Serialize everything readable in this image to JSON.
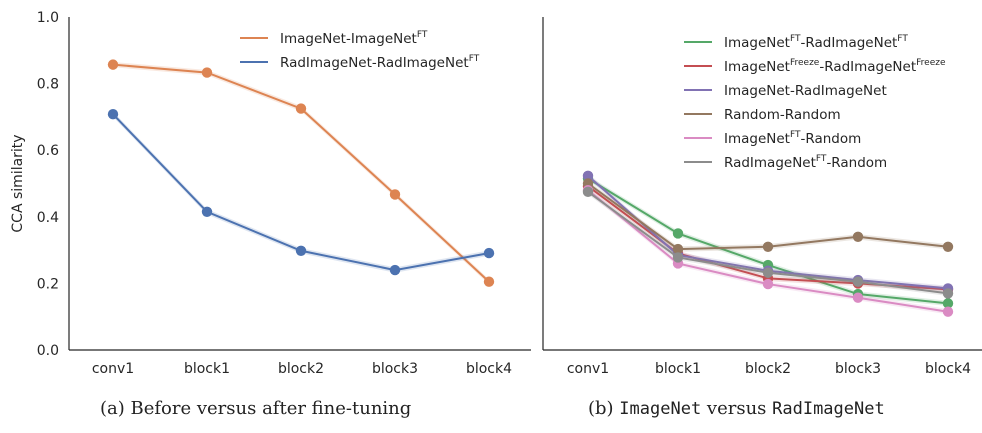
{
  "chart_data": [
    {
      "type": "line",
      "categories": [
        "conv1",
        "block1",
        "block2",
        "block3",
        "block4"
      ],
      "ylabel": "CCA similarity",
      "ylim": [
        0.0,
        1.0
      ],
      "yticks": [
        "0.0",
        "0.2",
        "0.4",
        "0.6",
        "0.8",
        "1.0"
      ],
      "legend_position": "top-right",
      "caption": {
        "prefix": "(a) ",
        "text": "Before versus after fine-tuning"
      },
      "series": [
        {
          "name": "ImageNet-ImageNet^FT",
          "legend": [
            {
              "t": "ImageNet-ImageNet"
            },
            {
              "t": "FT",
              "sup": true
            }
          ],
          "color": "#dd8452",
          "values": [
            0.857,
            0.833,
            0.725,
            0.467,
            0.205
          ]
        },
        {
          "name": "RadImageNet-RadImageNet^FT",
          "legend": [
            {
              "t": "RadImageNet-RadImageNet"
            },
            {
              "t": "FT",
              "sup": true
            }
          ],
          "color": "#4c72b0",
          "values": [
            0.708,
            0.415,
            0.298,
            0.24,
            0.291
          ]
        }
      ]
    },
    {
      "type": "line",
      "categories": [
        "conv1",
        "block1",
        "block2",
        "block3",
        "block4"
      ],
      "ylabel": "",
      "ylim": [
        0.0,
        1.0
      ],
      "legend_position": "top-right",
      "caption": {
        "prefix": "(b) ",
        "parts": [
          "ImageNet",
          " versus ",
          "RadImageNet"
        ]
      },
      "series": [
        {
          "name": "ImageNet^FT-RadImageNet^FT",
          "legend": [
            {
              "t": "ImageNet"
            },
            {
              "t": "FT",
              "sup": true
            },
            {
              "t": "-RadImageNet"
            },
            {
              "t": "FT",
              "sup": true
            }
          ],
          "color": "#55a868",
          "values": [
            0.515,
            0.35,
            0.255,
            0.168,
            0.14
          ]
        },
        {
          "name": "ImageNet^Freeze-RadImageNet^Freeze",
          "legend": [
            {
              "t": "ImageNet"
            },
            {
              "t": "Freeze",
              "sup": true
            },
            {
              "t": "-RadImageNet"
            },
            {
              "t": "Freeze",
              "sup": true
            }
          ],
          "color": "#c44e52",
          "values": [
            0.492,
            0.29,
            0.215,
            0.2,
            0.182
          ]
        },
        {
          "name": "ImageNet-RadImageNet",
          "legend": [
            {
              "t": "ImageNet-RadImageNet"
            }
          ],
          "color": "#8172b3",
          "values": [
            0.523,
            0.285,
            0.238,
            0.21,
            0.185
          ]
        },
        {
          "name": "Random-Random",
          "legend": [
            {
              "t": "Random-Random"
            }
          ],
          "color": "#937860",
          "values": [
            0.5,
            0.303,
            0.31,
            0.34,
            0.31
          ]
        },
        {
          "name": "ImageNet^FT-Random",
          "legend": [
            {
              "t": "ImageNet"
            },
            {
              "t": "FT",
              "sup": true
            },
            {
              "t": "-Random"
            }
          ],
          "color": "#da8bc3",
          "values": [
            0.48,
            0.26,
            0.198,
            0.157,
            0.115
          ]
        },
        {
          "name": "RadImageNet^FT-Random",
          "legend": [
            {
              "t": "RadImageNet"
            },
            {
              "t": "FT",
              "sup": true
            },
            {
              "t": "-Random"
            }
          ],
          "color": "#8c8c8c",
          "values": [
            0.475,
            0.278,
            0.232,
            0.205,
            0.17
          ]
        }
      ]
    }
  ]
}
